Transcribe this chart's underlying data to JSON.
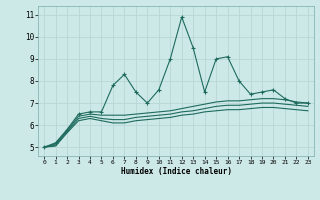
{
  "xlabel": "Humidex (Indice chaleur)",
  "background_color": "#cce9e7",
  "grid_color": "#b8d8d5",
  "line_color": "#1e6b5e",
  "x": [
    0,
    1,
    2,
    3,
    4,
    5,
    6,
    7,
    8,
    9,
    10,
    11,
    12,
    13,
    14,
    15,
    16,
    17,
    18,
    19,
    20,
    21,
    22,
    23
  ],
  "series1": [
    5.0,
    5.2,
    5.8,
    6.5,
    6.6,
    6.6,
    7.8,
    8.3,
    7.5,
    7.0,
    7.6,
    9.0,
    10.9,
    9.5,
    7.5,
    9.0,
    9.1,
    8.0,
    7.4,
    7.5,
    7.6,
    7.2,
    7.0,
    7.0
  ],
  "series2": [
    5.0,
    5.15,
    5.75,
    6.4,
    6.5,
    6.45,
    6.45,
    6.45,
    6.5,
    6.55,
    6.6,
    6.65,
    6.75,
    6.85,
    6.95,
    7.05,
    7.1,
    7.1,
    7.15,
    7.2,
    7.2,
    7.15,
    7.05,
    7.0
  ],
  "series3": [
    5.0,
    5.1,
    5.7,
    6.3,
    6.4,
    6.3,
    6.25,
    6.25,
    6.35,
    6.4,
    6.45,
    6.5,
    6.6,
    6.65,
    6.75,
    6.85,
    6.9,
    6.9,
    6.95,
    7.0,
    7.0,
    6.95,
    6.9,
    6.85
  ],
  "series4": [
    5.0,
    5.05,
    5.65,
    6.2,
    6.3,
    6.2,
    6.1,
    6.1,
    6.2,
    6.25,
    6.3,
    6.35,
    6.45,
    6.5,
    6.6,
    6.65,
    6.7,
    6.7,
    6.75,
    6.8,
    6.8,
    6.75,
    6.7,
    6.65
  ],
  "ylim": [
    4.6,
    11.4
  ],
  "yticks": [
    5,
    6,
    7,
    8,
    9,
    10,
    11
  ],
  "xticks": [
    0,
    1,
    2,
    3,
    4,
    5,
    6,
    7,
    8,
    9,
    10,
    11,
    12,
    13,
    14,
    15,
    16,
    17,
    18,
    19,
    20,
    21,
    22,
    23
  ]
}
